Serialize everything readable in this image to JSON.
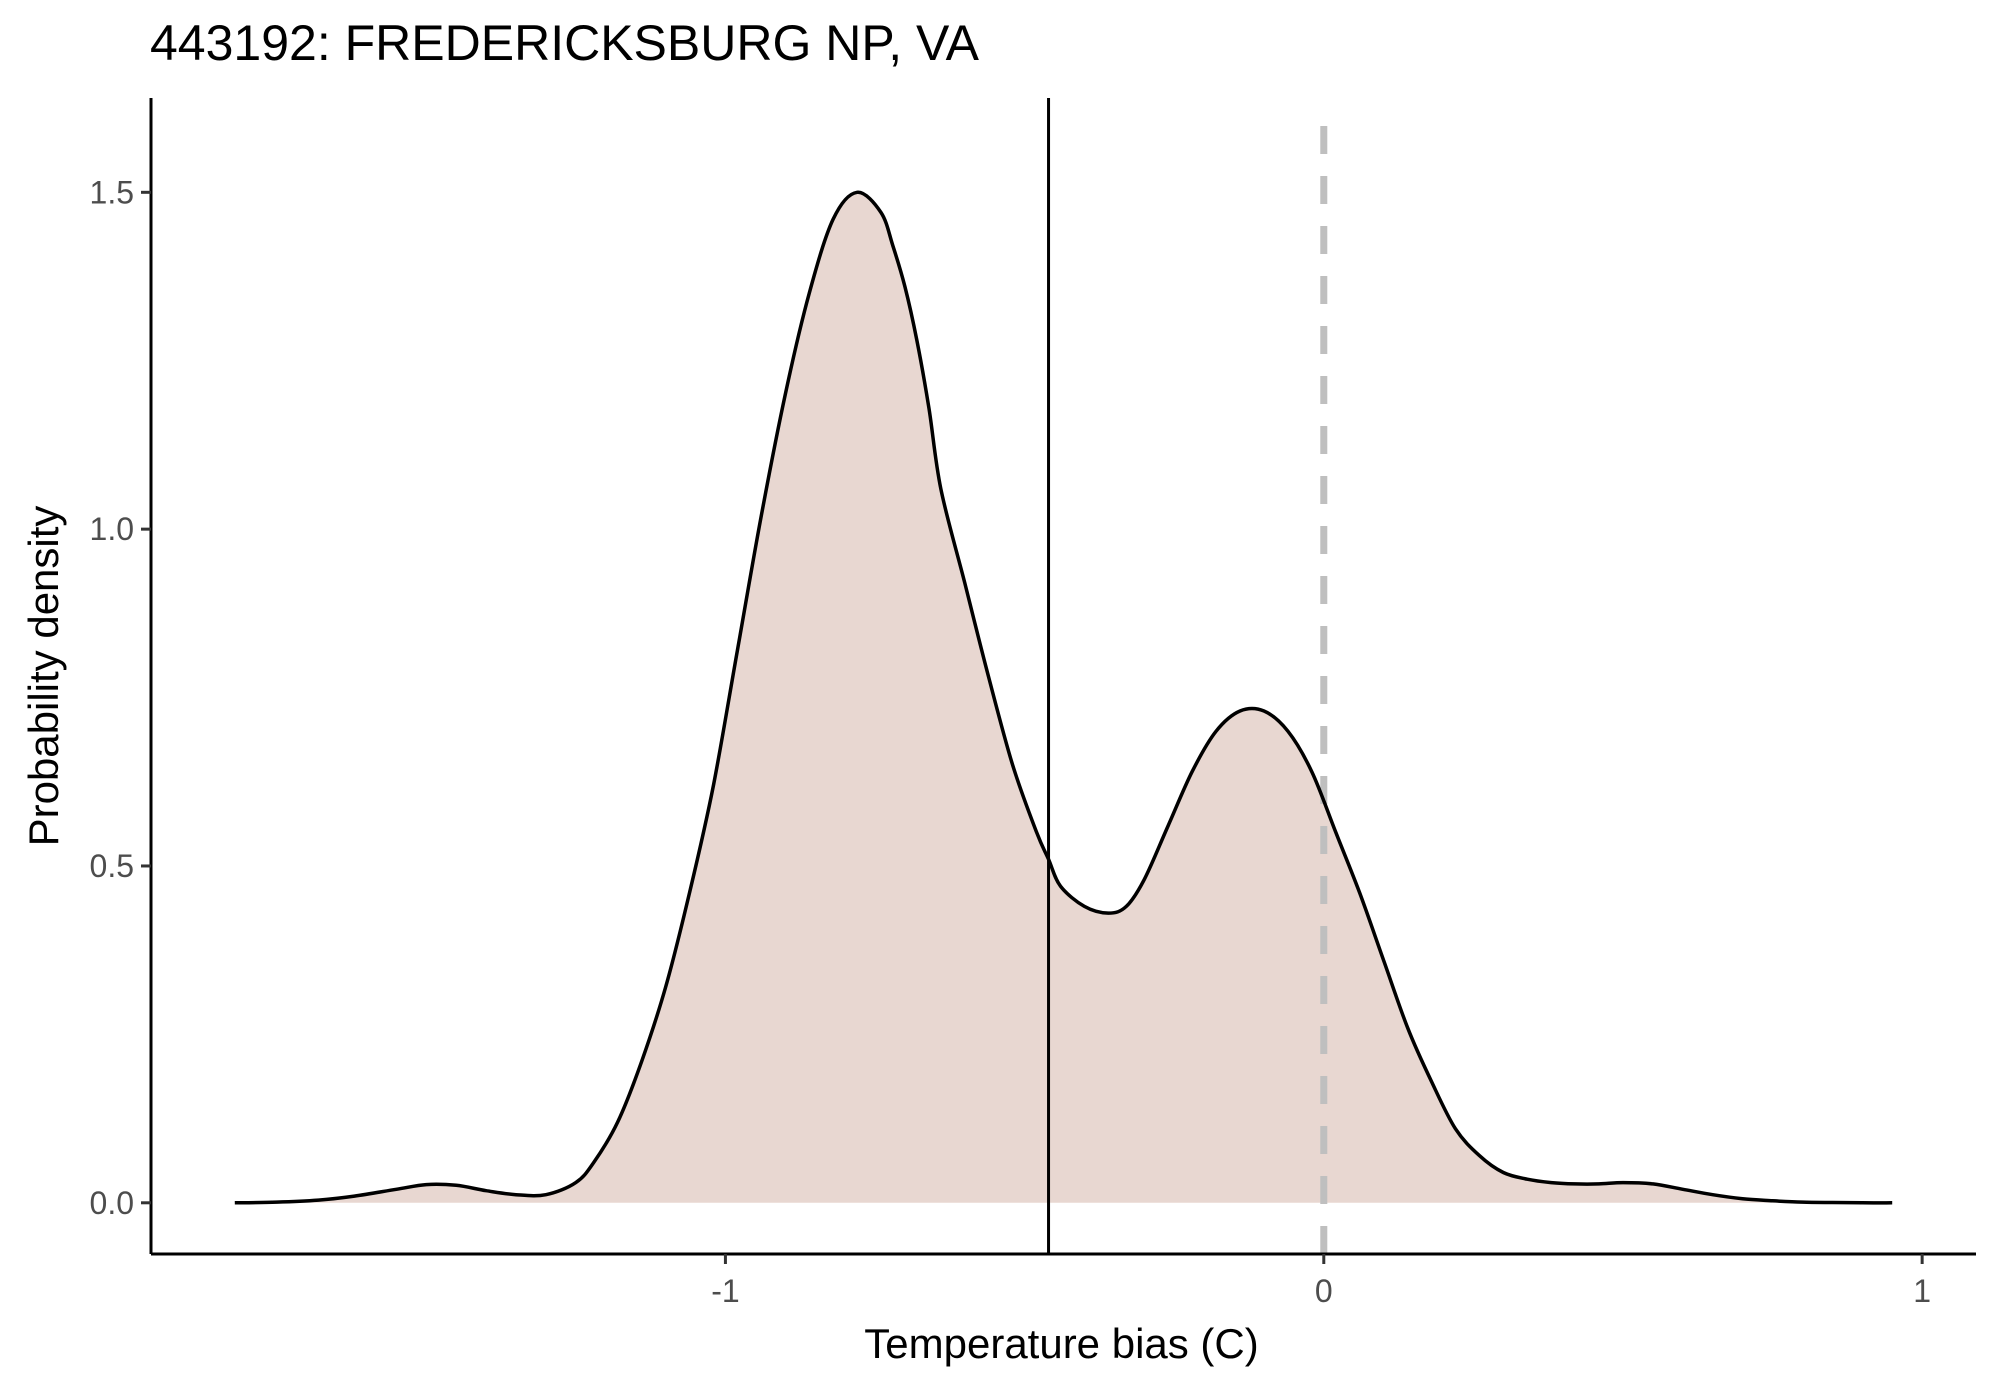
{
  "chart_data": {
    "type": "area",
    "title": "443192: FREDERICKSBURG NP, VA",
    "xlabel": "Temperature bias (C)",
    "ylabel": "Probability density",
    "xlim": [
      -1.96,
      1.09
    ],
    "ylim": [
      -0.076,
      1.64
    ],
    "x_ticks": [
      -1,
      0,
      1
    ],
    "x_tick_labels": [
      "-1",
      "0",
      "1"
    ],
    "y_ticks": [
      0.0,
      0.5,
      1.0,
      1.5
    ],
    "y_tick_labels": [
      "0.0",
      "0.5",
      "1.0",
      "1.5"
    ],
    "grid": false,
    "fill_color": "#e8d7d1",
    "line_color": "#000000",
    "reference_lines": [
      {
        "x": -0.46,
        "style": "solid",
        "color": "#000000"
      },
      {
        "x": 0.0,
        "style": "dashed",
        "color": "#bfbfbf"
      }
    ],
    "series": [
      {
        "x": [
          -1.82,
          -1.75,
          -1.68,
          -1.62,
          -1.55,
          -1.5,
          -1.45,
          -1.4,
          -1.35,
          -1.3,
          -1.25,
          -1.22,
          -1.18,
          -1.14,
          -1.1,
          -1.06,
          -1.02,
          -0.98,
          -0.94,
          -0.9,
          -0.86,
          -0.82,
          -0.78,
          -0.74,
          -0.72,
          -0.7,
          -0.68,
          -0.66,
          -0.64,
          -0.6,
          -0.56,
          -0.52,
          -0.48,
          -0.46,
          -0.44,
          -0.4,
          -0.36,
          -0.33,
          -0.3,
          -0.26,
          -0.22,
          -0.18,
          -0.14,
          -0.1,
          -0.06,
          -0.02,
          0.02,
          0.06,
          0.1,
          0.14,
          0.18,
          0.22,
          0.26,
          0.3,
          0.34,
          0.38,
          0.42,
          0.46,
          0.5,
          0.55,
          0.6,
          0.65,
          0.7,
          0.75,
          0.8,
          0.85,
          0.9,
          0.95
        ],
        "y": [
          0.0,
          0.001,
          0.004,
          0.01,
          0.02,
          0.027,
          0.026,
          0.018,
          0.012,
          0.012,
          0.03,
          0.06,
          0.12,
          0.21,
          0.32,
          0.46,
          0.62,
          0.82,
          1.02,
          1.2,
          1.35,
          1.46,
          1.5,
          1.47,
          1.42,
          1.36,
          1.28,
          1.18,
          1.06,
          0.92,
          0.78,
          0.65,
          0.55,
          0.51,
          0.47,
          0.44,
          0.43,
          0.44,
          0.48,
          0.56,
          0.64,
          0.7,
          0.73,
          0.73,
          0.7,
          0.64,
          0.55,
          0.46,
          0.36,
          0.26,
          0.18,
          0.11,
          0.07,
          0.045,
          0.035,
          0.03,
          0.028,
          0.028,
          0.03,
          0.028,
          0.02,
          0.012,
          0.006,
          0.003,
          0.001,
          0.0005,
          0.0,
          0.0
        ]
      }
    ]
  }
}
